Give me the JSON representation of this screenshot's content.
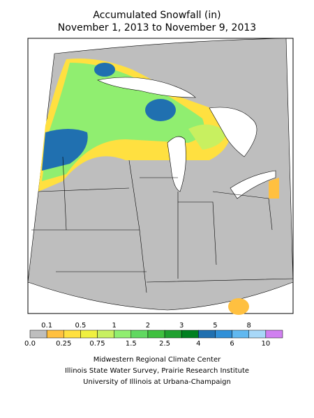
{
  "title": {
    "line1": "Accumulated Snowfall (in)",
    "line2": "November 1, 2013 to November 9, 2013"
  },
  "legend": {
    "colors": [
      "#bebebe",
      "#ffc040",
      "#ffe040",
      "#f0f040",
      "#c8f060",
      "#90ee70",
      "#60d860",
      "#40c040",
      "#20a030",
      "#008020",
      "#2070b0",
      "#3090d8",
      "#60b8f0",
      "#a8d8f8",
      "#d080f0"
    ],
    "top_labels": [
      "0.1",
      "0.5",
      "1",
      "2",
      "3",
      "5",
      "8"
    ],
    "bottom_labels": [
      "0.0",
      "0.25",
      "0.75",
      "1.5",
      "2.5",
      "4",
      "6",
      "10"
    ]
  },
  "credits": [
    "Midwestern Regional Climate Center",
    "Illinois State Water Survey, Prairie Research Institute",
    "University of Illinois at Urbana-Champaign"
  ]
}
